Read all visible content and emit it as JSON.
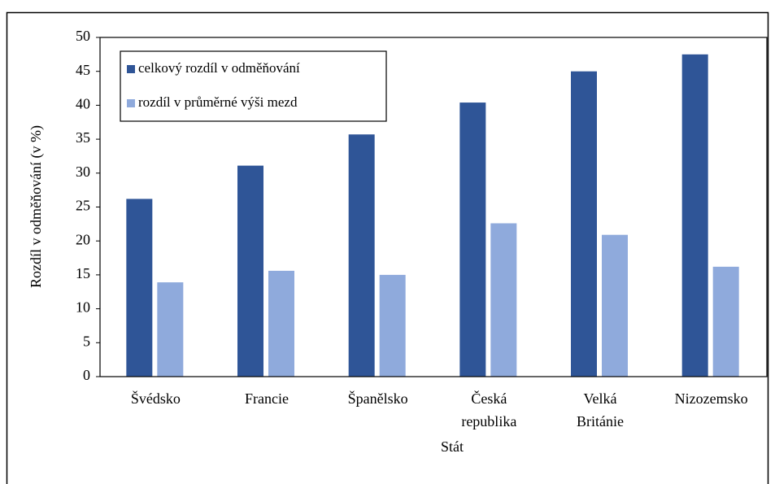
{
  "chart_data": {
    "type": "bar",
    "categories": [
      "Švédsko",
      "Francie",
      "Španělsko",
      "Česká republika",
      "Velká Británie",
      "Nizozemsko"
    ],
    "series": [
      {
        "name": "celkový rozdíl v odměňování",
        "color": "#2f5597",
        "values": [
          26.2,
          31.1,
          35.7,
          40.4,
          45.0,
          47.5
        ]
      },
      {
        "name": "rozdíl v průměrné výši mezd",
        "color": "#8faadc",
        "values": [
          13.9,
          15.6,
          15.0,
          22.6,
          20.9,
          16.2
        ]
      }
    ],
    "xlabel": "Stát",
    "ylabel": "Rozdíl v odměňování (v %)",
    "ylim": [
      0,
      50
    ],
    "yticks": [
      0,
      5,
      10,
      15,
      20,
      25,
      30,
      35,
      40,
      45,
      50
    ],
    "grid": false,
    "legend": "upper left"
  }
}
